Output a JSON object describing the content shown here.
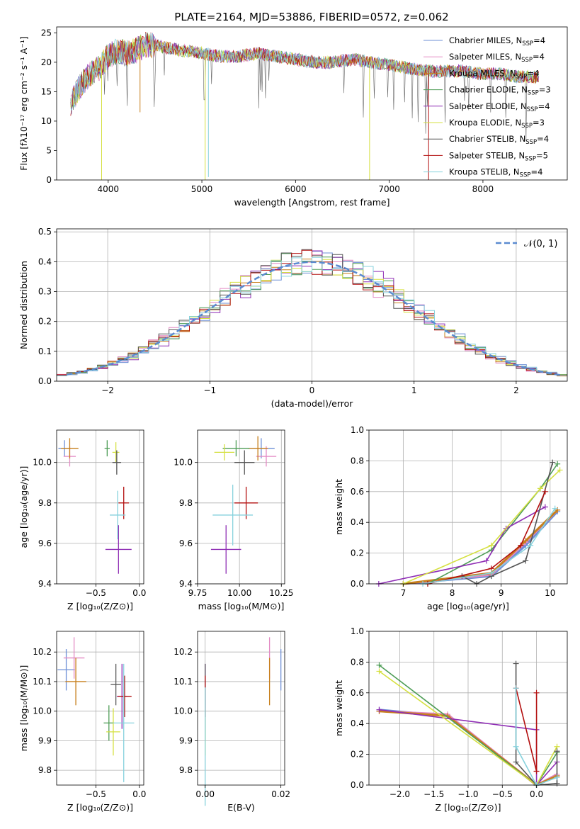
{
  "colors": [
    "#6d8fd6",
    "#e38ac4",
    "#c77f1c",
    "#4f9d57",
    "#8f2eb5",
    "#d5e040",
    "#555555",
    "#b30f0f",
    "#87d2dd"
  ],
  "chart_data": [
    {
      "id": "spectrum",
      "type": "line",
      "title": "PLATE=2164, MJD=53886, FIBERID=0572, z=0.062",
      "xlabel": "wavelength [Angstrom, rest frame]",
      "ylabel": "Flux [fλ10⁻¹⁷ erg cm⁻² s⁻¹ A⁻¹]",
      "xlim": [
        3450,
        8900
      ],
      "ylim": [
        0,
        26
      ],
      "xticks": [
        4000,
        5000,
        6000,
        7000,
        8000
      ],
      "yticks": [
        0,
        5,
        10,
        15,
        20,
        25
      ],
      "legend_position": "right",
      "grid": false,
      "x": [
        3600,
        3700,
        3800,
        3900,
        4000,
        4100,
        4200,
        4300,
        4400,
        4500,
        4600,
        4800,
        5000,
        5200,
        5400,
        5600,
        5800,
        6000,
        6200,
        6400,
        6600,
        6800,
        7000,
        7200,
        7400,
        7600,
        7800,
        8000,
        8200,
        8400,
        8600
      ],
      "y": [
        13,
        16,
        18,
        19,
        21,
        22,
        21.5,
        22,
        23,
        23,
        22.5,
        22,
        21.5,
        21,
        21,
        21.5,
        21,
        20.5,
        20,
        20,
        20.5,
        20,
        19.5,
        19,
        18.5,
        18.5,
        18.5,
        18,
        18,
        17.5,
        17.5
      ],
      "series": [
        {
          "name": "Chabrier MILES, N",
          "sub": "SSP",
          "suffix": "=4"
        },
        {
          "name": "Salpeter MILES, N",
          "sub": "SSP",
          "suffix": "=4"
        },
        {
          "name": "Kroupa MILES, N",
          "sub": "SSP",
          "suffix": "=4"
        },
        {
          "name": "Chabrier ELODIE, N",
          "sub": "SSP",
          "suffix": "=3"
        },
        {
          "name": "Salpeter ELODIE, N",
          "sub": "SSP",
          "suffix": "=4"
        },
        {
          "name": "Kroupa ELODIE, N",
          "sub": "SSP",
          "suffix": "=3"
        },
        {
          "name": "Chabrier STELIB, N",
          "sub": "SSP",
          "suffix": "=4"
        },
        {
          "name": "Salpeter STELIB, N",
          "sub": "SSP",
          "suffix": "=5"
        },
        {
          "name": "Kroupa STELIB, N",
          "sub": "SSP",
          "suffix": "=4"
        }
      ]
    },
    {
      "id": "residuals",
      "type": "histogram",
      "xlabel": "(data-model)/error",
      "ylabel": "Normed distribution",
      "xlim": [
        -2.5,
        2.5
      ],
      "ylim": [
        0,
        0.51
      ],
      "xticks": [
        -2,
        -1,
        0,
        1,
        2
      ],
      "yticks": [
        0.0,
        0.1,
        0.2,
        0.3,
        0.4,
        0.5
      ],
      "legend": "𝒩(0, 1)",
      "legend_position": "top-right",
      "grid": true
    },
    {
      "id": "age_vs_Z",
      "type": "scatter",
      "xlabel": "Z [log₁₀(Z/Z⊙)]",
      "ylabel": "age  [log₁₀(age/yr)]",
      "xlim": [
        -0.95,
        0.05
      ],
      "ylim": [
        9.4,
        10.16
      ],
      "xticks": [
        -0.5,
        0.0
      ],
      "yticks": [
        9.4,
        9.6,
        9.8,
        10.0
      ],
      "points": [
        {
          "x": -0.86,
          "y": 10.07,
          "xerr": 0.07,
          "yerr": 0.04
        },
        {
          "x": -0.8,
          "y": 10.03,
          "xerr": 0.07,
          "yerr": 0.05
        },
        {
          "x": -0.8,
          "y": 10.07,
          "xerr": 0.1,
          "yerr": 0.05
        },
        {
          "x": -0.37,
          "y": 10.07,
          "xerr": 0.03,
          "yerr": 0.04
        },
        {
          "x": -0.24,
          "y": 9.57,
          "xerr": 0.15,
          "yerr": 0.12
        },
        {
          "x": -0.27,
          "y": 10.05,
          "xerr": 0.04,
          "yerr": 0.05
        },
        {
          "x": -0.26,
          "y": 10.0,
          "xerr": 0.05,
          "yerr": 0.06
        },
        {
          "x": -0.18,
          "y": 9.8,
          "xerr": 0.06,
          "yerr": 0.08
        },
        {
          "x": -0.25,
          "y": 9.74,
          "xerr": 0.09,
          "yerr": 0.12
        }
      ]
    },
    {
      "id": "age_vs_mass",
      "type": "scatter",
      "xlabel": "mass [log₁₀(M/M⊙)]",
      "xlim": [
        9.75,
        10.27
      ],
      "ylim": [
        9.4,
        10.16
      ],
      "xticks": [
        9.75,
        10.0,
        10.25
      ],
      "yticks": [
        9.4,
        9.6,
        9.8,
        10.0
      ],
      "points": [
        {
          "x": 10.13,
          "y": 10.07,
          "xerr": 0.08,
          "yerr": 0.05
        },
        {
          "x": 10.16,
          "y": 10.03,
          "xerr": 0.06,
          "yerr": 0.05
        },
        {
          "x": 10.11,
          "y": 10.07,
          "xerr": 0.06,
          "yerr": 0.06
        },
        {
          "x": 9.98,
          "y": 10.07,
          "xerr": 0.08,
          "yerr": 0.04
        },
        {
          "x": 9.92,
          "y": 9.57,
          "xerr": 0.09,
          "yerr": 0.12
        },
        {
          "x": 9.91,
          "y": 10.05,
          "xerr": 0.06,
          "yerr": 0.04
        },
        {
          "x": 10.03,
          "y": 10.0,
          "xerr": 0.06,
          "yerr": 0.06
        },
        {
          "x": 10.04,
          "y": 9.8,
          "xerr": 0.07,
          "yerr": 0.08
        },
        {
          "x": 9.96,
          "y": 9.74,
          "xerr": 0.12,
          "yerr": 0.15
        }
      ]
    },
    {
      "id": "weight_vs_age",
      "type": "line",
      "xlabel": "age  [log₁₀(age/yr)]",
      "ylabel": "mass weight",
      "xlim": [
        6.3,
        10.35
      ],
      "ylim": [
        0,
        1.0
      ],
      "xticks": [
        7,
        8,
        9,
        10
      ],
      "yticks": [
        0.0,
        0.2,
        0.4,
        0.6,
        0.8,
        1.0
      ],
      "series": [
        {
          "x": [
            7.0,
            8.8,
            9.5,
            10.15
          ],
          "y": [
            0.0,
            0.05,
            0.25,
            0.47
          ]
        },
        {
          "x": [
            7.0,
            8.8,
            9.5,
            10.15
          ],
          "y": [
            0.0,
            0.06,
            0.27,
            0.48
          ]
        },
        {
          "x": [
            7.0,
            8.8,
            9.5,
            10.15
          ],
          "y": [
            0.0,
            0.07,
            0.28,
            0.48
          ]
        },
        {
          "x": [
            7.5,
            8.8,
            9.8,
            10.15
          ],
          "y": [
            0.0,
            0.22,
            0.62,
            0.78
          ]
        },
        {
          "x": [
            6.5,
            8.7,
            9.1,
            9.9
          ],
          "y": [
            0.0,
            0.15,
            0.36,
            0.5
          ]
        },
        {
          "x": [
            7.0,
            8.8,
            9.8,
            10.2
          ],
          "y": [
            0.0,
            0.25,
            0.62,
            0.74
          ]
        },
        {
          "x": [
            8.2,
            8.5,
            8.8,
            9.5,
            10.05
          ],
          "y": [
            0.05,
            0.0,
            0.05,
            0.15,
            0.79
          ]
        },
        {
          "x": [
            7.5,
            8.8,
            9.4,
            9.9
          ],
          "y": [
            0.0,
            0.1,
            0.25,
            0.6
          ]
        },
        {
          "x": [
            7.4,
            8.8,
            9.6,
            10.1
          ],
          "y": [
            0.0,
            0.07,
            0.25,
            0.49
          ]
        }
      ]
    },
    {
      "id": "mass_vs_Z",
      "type": "scatter",
      "xlabel": "Z [log₁₀(Z/Z⊙)]",
      "ylabel": "mass [log₁₀(M/M⊙)]",
      "xlim": [
        -0.95,
        0.05
      ],
      "ylim": [
        9.75,
        10.27
      ],
      "xticks": [
        -0.5,
        0.0
      ],
      "yticks": [
        9.8,
        9.9,
        10.0,
        10.1,
        10.2
      ],
      "points": [
        {
          "x": -0.84,
          "y": 10.14,
          "xerr": 0.1,
          "yerr": 0.07
        },
        {
          "x": -0.75,
          "y": 10.18,
          "xerr": 0.12,
          "yerr": 0.07
        },
        {
          "x": -0.73,
          "y": 10.1,
          "xerr": 0.12,
          "yerr": 0.08
        },
        {
          "x": -0.35,
          "y": 9.96,
          "xerr": 0.06,
          "yerr": 0.06
        },
        {
          "x": -0.2,
          "y": 10.05,
          "xerr": 0.06,
          "yerr": 0.11
        },
        {
          "x": -0.3,
          "y": 9.93,
          "xerr": 0.08,
          "yerr": 0.08
        },
        {
          "x": -0.27,
          "y": 10.09,
          "xerr": 0.06,
          "yerr": 0.07
        },
        {
          "x": -0.17,
          "y": 10.05,
          "xerr": 0.08,
          "yerr": 0.07
        },
        {
          "x": -0.18,
          "y": 9.96,
          "xerr": 0.12,
          "yerr": 0.2
        }
      ]
    },
    {
      "id": "mass_vs_ebv",
      "type": "scatter",
      "xlabel": "E(B-V)",
      "xlim": [
        -0.002,
        0.021
      ],
      "ylim": [
        9.75,
        10.27
      ],
      "xticks": [
        0.0,
        0.02
      ],
      "yticks": [
        9.8,
        9.9,
        10.0,
        10.1,
        10.2
      ],
      "points": [
        {
          "x": 0.02,
          "y": 10.14,
          "xerr": 0.0,
          "yerr": 0.07
        },
        {
          "x": 0.017,
          "y": 10.18,
          "xerr": 0.0,
          "yerr": 0.07
        },
        {
          "x": 0.017,
          "y": 10.1,
          "xerr": 0.0,
          "yerr": 0.08
        },
        {
          "x": 0.0,
          "y": 9.96,
          "xerr": 0.0,
          "yerr": 0.06
        },
        {
          "x": 0.0,
          "y": 10.05,
          "xerr": 0.0,
          "yerr": 0.11
        },
        {
          "x": 0.0,
          "y": 9.93,
          "xerr": 0.0,
          "yerr": 0.08
        },
        {
          "x": 0.0,
          "y": 10.09,
          "xerr": 0.0,
          "yerr": 0.07
        },
        {
          "x": 0.0,
          "y": 10.05,
          "xerr": 0.0,
          "yerr": 0.07
        },
        {
          "x": 0.0,
          "y": 9.88,
          "xerr": 0.0,
          "yerr": 0.2
        }
      ]
    },
    {
      "id": "weight_vs_Z",
      "type": "line",
      "xlabel": "Z [log₁₀(Z/Z⊙)]",
      "ylabel": "mass weight",
      "xlim": [
        -2.45,
        0.45
      ],
      "ylim": [
        0,
        1.0
      ],
      "xticks": [
        -2.0,
        -1.5,
        -1.0,
        -0.5,
        0.0
      ],
      "yticks": [
        0.0,
        0.2,
        0.4,
        0.6,
        0.8,
        1.0
      ],
      "series": [
        {
          "x": [
            -2.3,
            -1.3,
            0.0,
            0.3
          ],
          "y": [
            0.49,
            0.45,
            0.0,
            0.06
          ]
        },
        {
          "x": [
            -2.3,
            -1.3,
            0.0,
            0.3
          ],
          "y": [
            0.48,
            0.46,
            0.0,
            0.07
          ]
        },
        {
          "x": [
            -2.3,
            -1.3,
            0.0,
            0.3
          ],
          "y": [
            0.48,
            0.45,
            0.0,
            0.06
          ]
        },
        {
          "x": [
            -2.3,
            0.0,
            0.3
          ],
          "y": [
            0.78,
            0.0,
            0.21
          ]
        },
        {
          "x": [
            -2.3,
            0.0,
            0.0,
            0.3
          ],
          "y": [
            0.49,
            0.36,
            0.0,
            0.15
          ]
        },
        {
          "x": [
            -2.3,
            0.0,
            0.3
          ],
          "y": [
            0.74,
            0.0,
            0.25
          ]
        },
        {
          "x": [
            -0.3,
            -0.3,
            0.0,
            0.3,
            0.3
          ],
          "y": [
            0.79,
            0.15,
            0.0,
            0.01,
            0.22
          ]
        },
        {
          "x": [
            -0.3,
            0.0,
            0.0
          ],
          "y": [
            0.63,
            0.09,
            0.6
          ]
        },
        {
          "x": [
            -0.3,
            -0.3,
            0.0,
            0.3
          ],
          "y": [
            0.63,
            0.25,
            0.0,
            0.05
          ]
        }
      ]
    }
  ]
}
